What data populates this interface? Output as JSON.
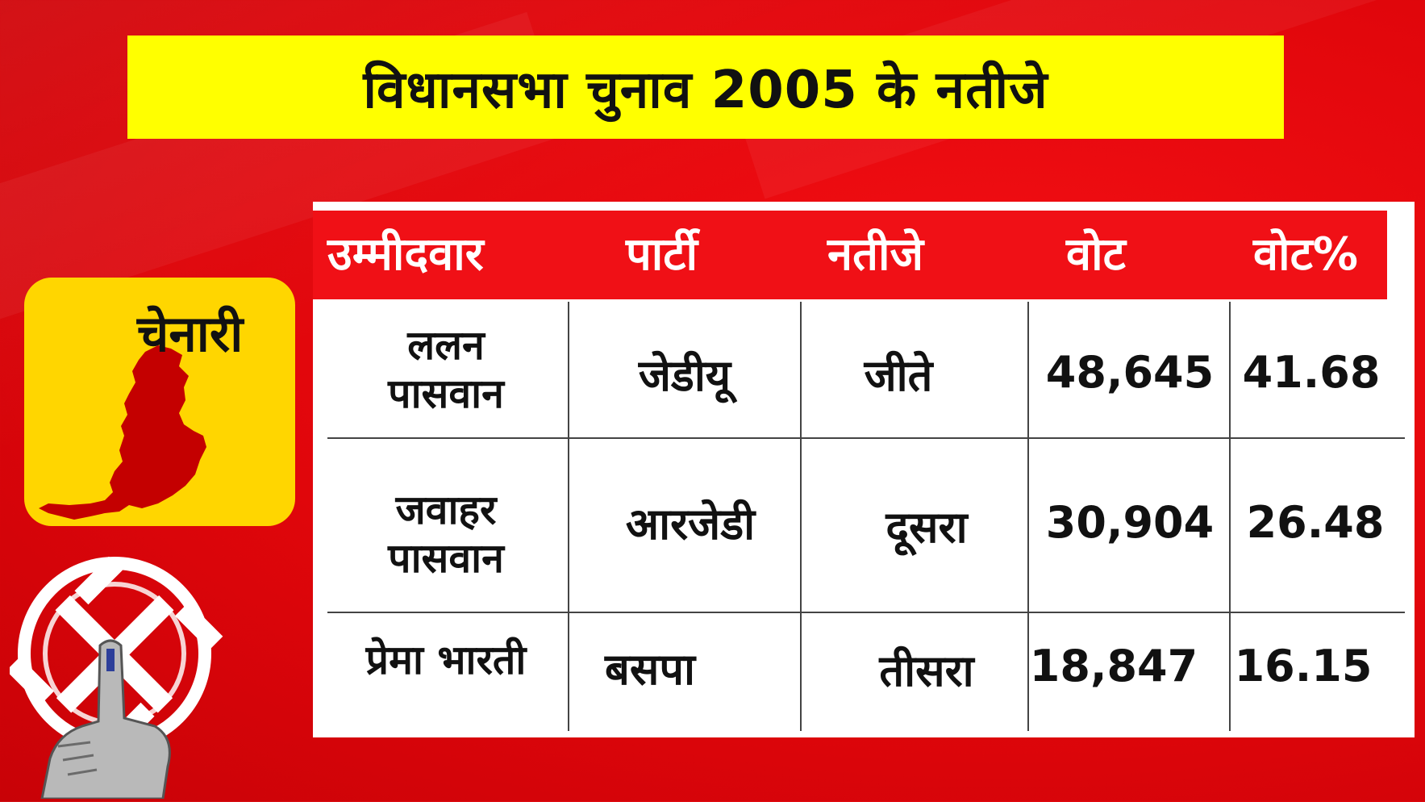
{
  "title": "विधानसभा चुनाव 2005 के नतीजे",
  "constituency": "चेनारी",
  "colors": {
    "background": "#e8090e",
    "title_bar": "#ffff00",
    "header_row": "#f01016",
    "badge": "#ffd600",
    "map": "#c40000"
  },
  "icons": [
    "constituency-map-icon",
    "election-symbol-icon",
    "inked-finger-icon"
  ],
  "table": {
    "headers": [
      "उम्मीदवार",
      "पार्टी",
      "नतीजे",
      "वोट",
      "वोट%"
    ],
    "rows": [
      {
        "candidate": "ललन पासवान",
        "candidate_line1": "ललन",
        "candidate_line2": "पासवान",
        "party": "जेडीयू",
        "result": "जीते",
        "votes": "48,645",
        "vote_pct": "41.68"
      },
      {
        "candidate": "जवाहर पासवान",
        "candidate_line1": "जवाहर",
        "candidate_line2": "पासवान",
        "party": "आरजेडी",
        "result": "दूसरा",
        "votes": "30,904",
        "vote_pct": "26.48"
      },
      {
        "candidate": "प्रेमा भारती",
        "party": "बसपा",
        "result": "तीसरा",
        "votes": "18,847",
        "vote_pct": "16.15"
      }
    ]
  }
}
